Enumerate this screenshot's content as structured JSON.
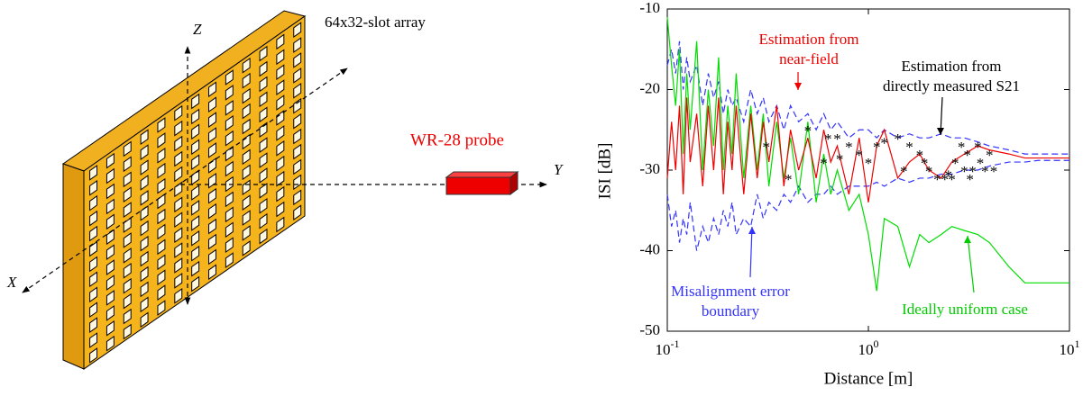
{
  "diagram": {
    "array_label": "64x32-slot array",
    "probe_label": "WR-28 probe",
    "axis_x": "X",
    "axis_y": "Y",
    "axis_z": "Z"
  },
  "chart_data": {
    "type": "line",
    "xlabel": "Distance [m]",
    "ylabel": "ISI [dB]",
    "xscale": "log",
    "xlim": [
      0.1,
      10
    ],
    "ylim": [
      -50,
      -10
    ],
    "xticks": [
      {
        "value": 0.1,
        "label": "10^-1"
      },
      {
        "value": 1,
        "label": "10^0"
      },
      {
        "value": 10,
        "label": "10^1"
      }
    ],
    "yticks": [
      -50,
      -40,
      -30,
      -20,
      -10
    ],
    "x": [
      0.1,
      0.105,
      0.11,
      0.115,
      0.12,
      0.125,
      0.13,
      0.14,
      0.15,
      0.16,
      0.17,
      0.18,
      0.19,
      0.2,
      0.21,
      0.22,
      0.24,
      0.26,
      0.28,
      0.3,
      0.32,
      0.35,
      0.38,
      0.41,
      0.45,
      0.5,
      0.55,
      0.6,
      0.65,
      0.7,
      0.8,
      0.9,
      1,
      1.1,
      1.2,
      1.4,
      1.6,
      1.8,
      2,
      2.3,
      2.6,
      3,
      3.5,
      4,
      5,
      6,
      7,
      8,
      10
    ],
    "series": [
      {
        "color": "#3333ff",
        "dash": true,
        "values": [
          -17,
          -15,
          -18,
          -14,
          -20,
          -16,
          -19,
          -17,
          -22,
          -18,
          -21,
          -19,
          -23,
          -20,
          -22,
          -21,
          -24,
          -20,
          -23,
          -21,
          -24,
          -22,
          -25,
          -22,
          -24,
          -23,
          -25,
          -23,
          -25,
          -24,
          -26,
          -25,
          -25,
          -26,
          -25,
          -26,
          -25.5,
          -26,
          -26,
          -25.5,
          -26,
          -26,
          -26.5,
          -27,
          -27.5,
          -28,
          -28,
          -28,
          -28
        ]
      },
      {
        "color": "#3333ff",
        "dash": true,
        "values": [
          -33,
          -37,
          -35,
          -39,
          -36,
          -38,
          -34,
          -40,
          -37,
          -39,
          -36,
          -38,
          -35,
          -37,
          -34,
          -38,
          -36,
          -37,
          -33,
          -36,
          -34,
          -35,
          -33,
          -34,
          -32,
          -34,
          -33,
          -33,
          -32,
          -33,
          -32,
          -32,
          -32,
          -31.5,
          -32,
          -31,
          -31.5,
          -31,
          -31,
          -30.5,
          -30.5,
          -30,
          -30,
          -29.5,
          -29,
          -29,
          -28.8,
          -28.8,
          -28.8
        ]
      },
      {
        "color": "#00dd00",
        "dash": false,
        "values": [
          -11,
          -17,
          -22,
          -15,
          -28,
          -18,
          -25,
          -14,
          -30,
          -20,
          -27,
          -16,
          -30,
          -22,
          -28,
          -18,
          -31,
          -22,
          -30,
          -23,
          -32,
          -24,
          -31,
          -26,
          -33,
          -24,
          -34,
          -28,
          -33,
          -30,
          -35,
          -33,
          -38,
          -45,
          -36,
          -37,
          -42,
          -38,
          -39,
          -38,
          -37,
          -37.5,
          -38,
          -39,
          -42,
          -44,
          -44,
          -44,
          -44
        ]
      },
      {
        "color": "#ee0000",
        "dash": false,
        "values": [
          -31,
          -24,
          -30,
          -22,
          -33,
          -21,
          -29,
          -23,
          -32,
          -22,
          -30,
          -21,
          -33,
          -24,
          -30,
          -22,
          -33,
          -23,
          -31,
          -24,
          -29,
          -22,
          -32,
          -25,
          -30,
          -26,
          -31,
          -25,
          -29,
          -27,
          -33,
          -26,
          -34,
          -27,
          -25,
          -31,
          -29,
          -28,
          -30,
          -31,
          -29,
          -28,
          -27,
          -27.5,
          -28,
          -28.5,
          -28.5,
          -28.5,
          -28.5
        ]
      }
    ],
    "scatter": {
      "color": "#000000",
      "x": [
        0.31,
        0.4,
        0.5,
        0.6,
        0.63,
        0.7,
        0.72,
        0.8,
        0.9,
        1,
        1.1,
        1.2,
        1.4,
        1.5,
        1.6,
        1.8,
        1.9,
        2,
        2.2,
        2.4,
        2.5,
        2.6,
        2.7,
        2.9,
        3,
        3.1,
        3.2,
        3.3,
        3.5,
        3.6,
        3.8,
        4,
        4.2
      ],
      "y": [
        -27,
        -31,
        -25,
        -29,
        -26,
        -26,
        -28.5,
        -27,
        -28,
        -29,
        -27,
        -26.5,
        -26,
        -30,
        -27,
        -28,
        -29,
        -30,
        -31,
        -31,
        -30.5,
        -31,
        -29,
        -27,
        -30,
        -28,
        -31,
        -30,
        -27,
        -29,
        -30,
        -28,
        -30
      ]
    },
    "annotations": [
      {
        "lines": [
          "Estimation from",
          "near-field"
        ],
        "color": "#ee0000"
      },
      {
        "lines": [
          "Estimation from",
          "directly measured S21"
        ],
        "color": "#000000"
      },
      {
        "lines": [
          "Misalignment error",
          "boundary"
        ],
        "color": "#3333ff"
      },
      {
        "lines": [
          "Ideally uniform case"
        ],
        "color": "#00cc00"
      }
    ]
  }
}
